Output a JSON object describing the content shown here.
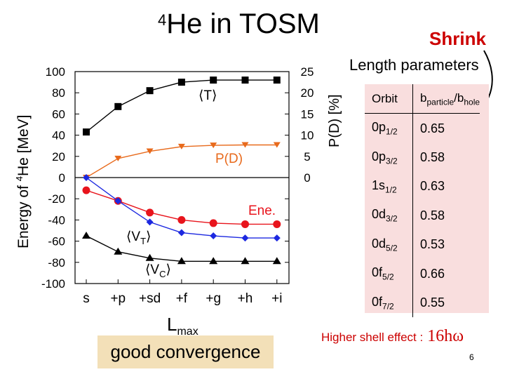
{
  "slide": {
    "title_sup": "4",
    "title_main": "He in TOSM",
    "shrink": "Shrink",
    "length_parameters": "Length parameters",
    "lmax_main": "L",
    "lmax_sub": "max",
    "good_convergence": "good convergence",
    "higher_shell_label": "Higher shell effect :",
    "higher_shell_value": "16hω",
    "page_number": "6"
  },
  "table": {
    "header": {
      "col1": "Orbit",
      "col2_main": "b",
      "col2_sub1": "particle",
      "col2_sep": "/b",
      "col2_sub2": "hole"
    },
    "rows": [
      {
        "orbit_main": "0p",
        "orbit_sub": "1/2",
        "value": "0.65"
      },
      {
        "orbit_main": "0p",
        "orbit_sub": "3/2",
        "value": "0.58"
      },
      {
        "orbit_main": "1s",
        "orbit_sub": "1/2",
        "value": "0.63"
      },
      {
        "orbit_main": "0d",
        "orbit_sub": "3/2",
        "value": "0.58"
      },
      {
        "orbit_main": "0d",
        "orbit_sub": "5/2",
        "value": "0.53"
      },
      {
        "orbit_main": "0f",
        "orbit_sub": "5/2",
        "value": "0.66"
      },
      {
        "orbit_main": "0f",
        "orbit_sub": "7/2",
        "value": "0.55"
      }
    ]
  },
  "colors": {
    "red": "#e8141c",
    "blue": "#1c28e0",
    "orange": "#e86a1c",
    "black": "#000000",
    "accent_red": "#cc0000",
    "panel_pink": "#f9dede",
    "box_tan": "#f3e0b8"
  },
  "chart_data": {
    "type": "line",
    "categories": [
      "s",
      "+p",
      "+sd",
      "+f",
      "+g",
      "+h",
      "+i"
    ],
    "ylabel": "Energy of 4He [MeV]",
    "ylabel_sup": "4",
    "ylabel_pre": "Energy of ",
    "ylabel_post": "He [MeV]",
    "ylim": [
      -100,
      100
    ],
    "yticks": [
      100,
      80,
      60,
      40,
      20,
      0,
      -20,
      -40,
      -60,
      -80,
      -100
    ],
    "y2label": "P(D) [%]",
    "y2lim": [
      -25,
      25
    ],
    "y2ticks": [
      25,
      20,
      15,
      10,
      5,
      0
    ],
    "series": [
      {
        "name": "⟨T⟩",
        "axis": "left",
        "color": "#000000",
        "marker": "square",
        "values": [
          43,
          67,
          82,
          90,
          92,
          92,
          92
        ]
      },
      {
        "name": "P(D)",
        "axis": "right",
        "color": "#e86a1c",
        "marker": "triangle-down",
        "values": [
          0,
          4.5,
          6.2,
          7.3,
          7.6,
          7.7,
          7.7
        ]
      },
      {
        "name": "Ene.",
        "axis": "left",
        "color": "#e8141c",
        "marker": "circle",
        "values": [
          -12,
          -22,
          -33,
          -40,
          -43,
          -44,
          -44
        ]
      },
      {
        "name": "⟨V_T⟩",
        "axis": "left",
        "color": "#1c28e0",
        "marker": "diamond",
        "values": [
          0,
          -22,
          -42,
          -52,
          -55,
          -57,
          -57
        ]
      },
      {
        "name": "⟨V_C⟩",
        "axis": "left",
        "color": "#000000",
        "marker": "triangle-up",
        "values": [
          -55,
          -70,
          -76,
          -79,
          -79,
          -79,
          -79
        ]
      }
    ]
  }
}
